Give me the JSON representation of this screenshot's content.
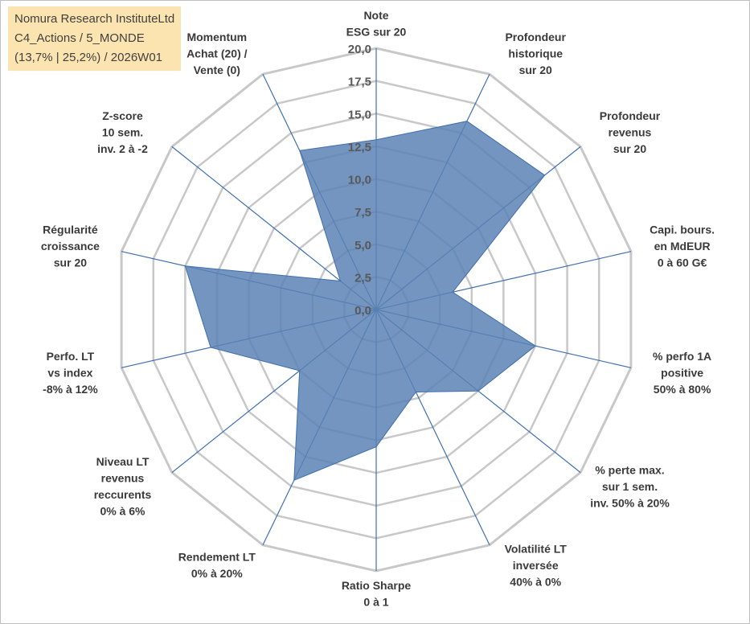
{
  "info_box": {
    "line1": "Nomura Research InstituteLtd",
    "line2": "C4_Actions / 5_MONDE",
    "line3": "(13,7% | 25,2%) / 2026W01"
  },
  "colors": {
    "fill": "#5a82b4",
    "stroke": "#3f6fb0",
    "grid": "#c8c8c8",
    "spoke": "#3f6fb0",
    "info_bg": "#fce4b0"
  },
  "chart_data": {
    "type": "radar",
    "title": "",
    "rmin": 0,
    "rmax": 20,
    "ticks": [
      "0,0",
      "2,5",
      "5,0",
      "7,5",
      "10,0",
      "12,5",
      "15,0",
      "17,5",
      "20,0"
    ],
    "categories": [
      [
        "Note",
        "ESG sur 20"
      ],
      [
        "Profondeur",
        "historique",
        "sur 20"
      ],
      [
        "Profondeur",
        "revenus",
        "sur 20"
      ],
      [
        "Capi. bours.",
        "en MdEUR",
        "0 à 60 G€"
      ],
      [
        "% perfo 1A",
        "positive",
        "50% à 80%"
      ],
      [
        "% perte max.",
        "sur 1 sem.",
        "inv. 50% à 20%"
      ],
      [
        "Volatilité LT",
        "inversée",
        "40% à 0%"
      ],
      [
        "Ratio Sharpe",
        "0 à 1"
      ],
      [
        "Rendement LT",
        "0% à 20%"
      ],
      [
        "Niveau LT",
        "revenus",
        "reccurents",
        "0% à 6%"
      ],
      [
        "Perfo. LT",
        "vs index",
        "-8% à 12%"
      ],
      [
        "Régularité",
        "croissance",
        "sur 20"
      ],
      [
        "Z-score",
        "10 sem.",
        "inv. 2 à -2"
      ],
      [
        "Momentum",
        "Achat (20) /",
        "Vente (0)"
      ]
    ],
    "series": [
      {
        "values": [
          13.0,
          16.0,
          16.5,
          6.0,
          12.5,
          10.0,
          7.0,
          10.5,
          14.5,
          7.5,
          13.0,
          15.0,
          3.5,
          13.5
        ]
      }
    ],
    "grid": true,
    "legend": "none"
  }
}
